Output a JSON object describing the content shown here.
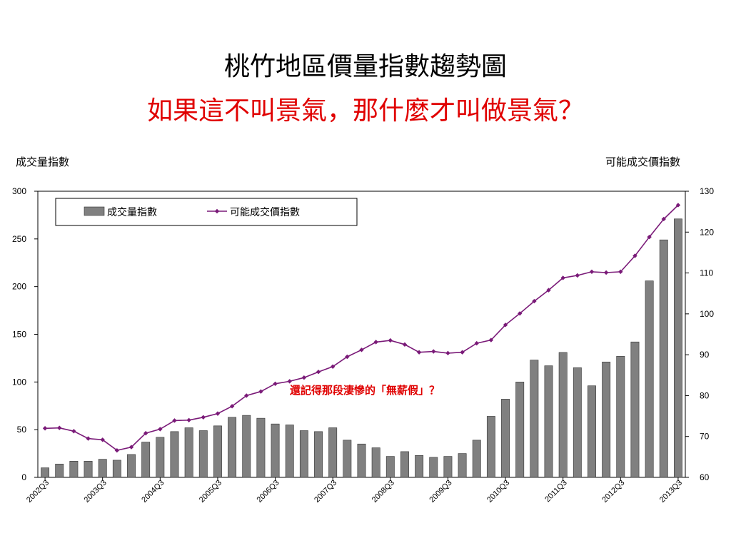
{
  "slide": {
    "title": "桃竹地區價量指數趨勢圖",
    "subtitle": "如果這不叫景氣，那什麼才叫做景氣？"
  },
  "colors": {
    "bar": "#808080",
    "bar_edge": "#333333",
    "line": "#7a1a78",
    "annotation": "#e00000",
    "subtitle": "#e00000"
  },
  "chart_data": {
    "type": "bar+line",
    "ylabel_left": "成交量指數",
    "ylabel_right": "可能成交價指數",
    "y_left_range": [
      0,
      300
    ],
    "y_left_ticks": [
      0,
      50,
      100,
      150,
      200,
      250,
      300
    ],
    "y_right_range": [
      60,
      130
    ],
    "y_right_ticks": [
      60,
      70,
      80,
      90,
      100,
      110,
      120,
      130
    ],
    "legend_position": "top-left inside plot",
    "x_tick_labels": [
      "2002Q3",
      "2003Q3",
      "2004Q3",
      "2005Q3",
      "2006Q3",
      "2007Q3",
      "2008Q3",
      "2009Q3",
      "2010Q3",
      "2011Q3",
      "2012Q3",
      "2013Q3"
    ],
    "categories": [
      "2002Q3",
      "2002Q4",
      "2003Q1",
      "2003Q2",
      "2003Q3",
      "2003Q4",
      "2004Q1",
      "2004Q2",
      "2004Q3",
      "2004Q4",
      "2005Q1",
      "2005Q2",
      "2005Q3",
      "2005Q4",
      "2006Q1",
      "2006Q2",
      "2006Q3",
      "2006Q4",
      "2007Q1",
      "2007Q2",
      "2007Q3",
      "2007Q4",
      "2008Q1",
      "2008Q2",
      "2008Q3",
      "2008Q4",
      "2009Q1",
      "2009Q2",
      "2009Q3",
      "2009Q4",
      "2010Q1",
      "2010Q2",
      "2010Q3",
      "2010Q4",
      "2011Q1",
      "2011Q2",
      "2011Q3",
      "2011Q4",
      "2012Q1",
      "2012Q2",
      "2012Q3",
      "2012Q4",
      "2013Q1",
      "2013Q2",
      "2013Q3"
    ],
    "series": [
      {
        "name": "成交量指數",
        "type": "bar",
        "axis": "left",
        "values": [
          10,
          14,
          17,
          17,
          19,
          18,
          24,
          37,
          42,
          48,
          52,
          49,
          54,
          63,
          65,
          62,
          56,
          55,
          49,
          48,
          52,
          39,
          35,
          31,
          22,
          27,
          23,
          21,
          22,
          25,
          39,
          64,
          82,
          100,
          123,
          117,
          131,
          115,
          96,
          121,
          127,
          142,
          206,
          249,
          271
        ]
      },
      {
        "name": "可能成交價指數",
        "type": "line",
        "axis": "right",
        "values": [
          72.0,
          72.1,
          71.3,
          69.5,
          69.2,
          66.6,
          67.4,
          70.8,
          71.8,
          73.9,
          74.0,
          74.7,
          75.6,
          77.4,
          80.0,
          81.0,
          82.9,
          83.5,
          84.4,
          85.8,
          87.1,
          89.5,
          91.2,
          93.1,
          93.5,
          92.5,
          90.6,
          90.8,
          90.4,
          90.6,
          92.8,
          93.6,
          97.3,
          100.1,
          103.1,
          105.8,
          108.8,
          109.4,
          110.3,
          110.1,
          110.3,
          114.2,
          118.8,
          123.2,
          126.6
        ]
      }
    ],
    "annotation": "還記得那段淒慘的「無薪假」？"
  }
}
